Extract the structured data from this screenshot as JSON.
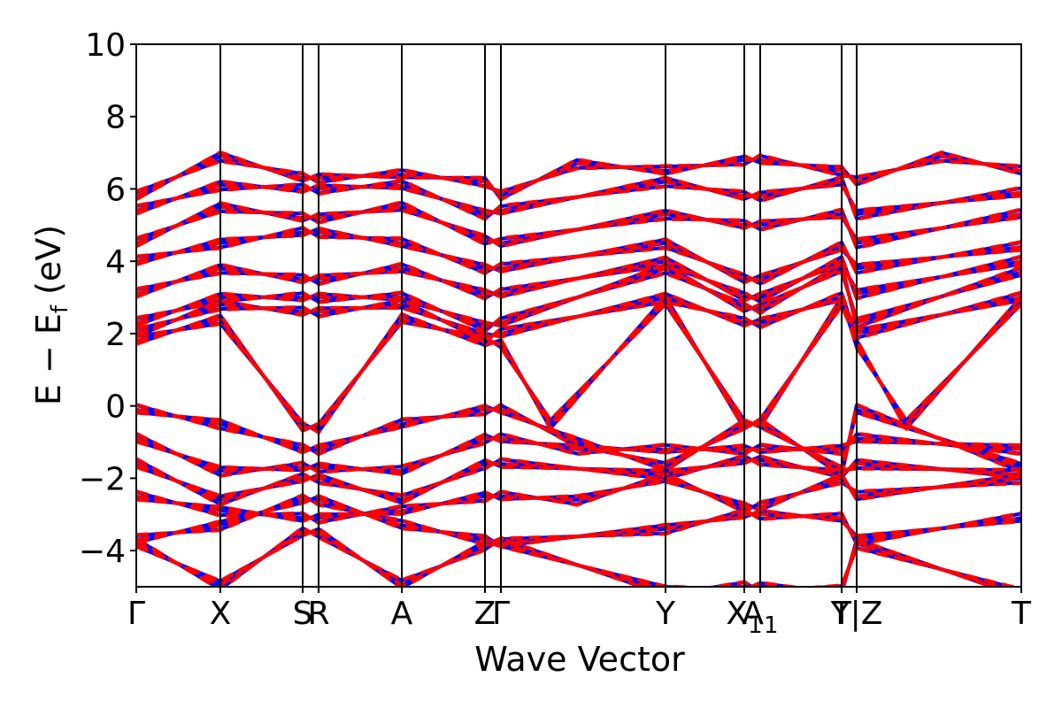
{
  "chart_data": {
    "type": "line",
    "xlabel": "Wave Vector",
    "ylabel": "E − E",
    "ylabel_sub": "f",
    "ylabel_unit": " (eV)",
    "ylim": [
      -5,
      10
    ],
    "yticks": [
      -4,
      -2,
      0,
      2,
      4,
      6,
      8,
      10
    ],
    "ytick_labels": [
      "−4",
      "−2",
      "0",
      "2",
      "4",
      "6",
      "8",
      "10"
    ],
    "xlim": [
      0,
      1
    ],
    "kpoints": [
      {
        "label": "Γ",
        "sub": "",
        "x": 0.0
      },
      {
        "label": "X",
        "sub": "",
        "x": 0.095
      },
      {
        "label": "S",
        "sub": "",
        "x": 0.188
      },
      {
        "label": "R",
        "sub": "",
        "x": 0.206
      },
      {
        "label": "A",
        "sub": "",
        "x": 0.3
      },
      {
        "label": "Z",
        "sub": "",
        "x": 0.394
      },
      {
        "label": "Γ",
        "sub": "",
        "x": 0.412
      },
      {
        "label": "Y",
        "sub": "",
        "x": 0.598
      },
      {
        "label": "X",
        "sub": "1",
        "x": 0.687
      },
      {
        "label": "A",
        "sub": "1",
        "x": 0.705
      },
      {
        "label": "T",
        "sub": "",
        "x": 0.797
      },
      {
        "label": "Y|Z",
        "sub": "",
        "x": 0.814
      },
      {
        "label": "T",
        "sub": "",
        "x": 1.0
      }
    ],
    "series": [
      {
        "color": "#0000ff",
        "style": "solid"
      },
      {
        "color": "#ff0000",
        "style": "dashed"
      }
    ],
    "bands": [
      {
        "x": [
          0,
          0.095,
          0.188,
          0.206,
          0.3,
          0.394,
          0.412,
          0.598,
          0.687,
          0.705,
          0.797,
          0.814,
          1.0
        ],
        "y": [
          -3.8,
          -4.95,
          -3.5,
          -3.5,
          -4.95,
          -3.85,
          -3.8,
          -5.1,
          -5.0,
          -5.0,
          -5.1,
          -3.8,
          -5.2
        ]
      },
      {
        "x": [
          0,
          0.095,
          0.188,
          0.206,
          0.3,
          0.394,
          0.412,
          0.598,
          0.687,
          0.705,
          0.797,
          0.814,
          1.0
        ],
        "y": [
          -3.7,
          -3.3,
          -2.6,
          -2.6,
          -3.3,
          -3.7,
          -3.8,
          -3.4,
          -3.0,
          -3.0,
          -3.1,
          -3.7,
          -3.1
        ]
      },
      {
        "x": [
          0,
          0.095,
          0.188,
          0.206,
          0.3,
          0.394,
          0.412,
          0.498,
          0.598,
          0.687,
          0.705,
          0.797,
          0.814,
          1.0
        ],
        "y": [
          -2.5,
          -2.9,
          -3.1,
          -3.1,
          -2.9,
          -2.5,
          -2.5,
          -2.6,
          -2.0,
          -2.8,
          -2.8,
          -2.0,
          -2.5,
          -2.0
        ]
      },
      {
        "x": [
          0,
          0.095,
          0.188,
          0.206,
          0.3,
          0.394,
          0.412,
          0.598,
          0.687,
          0.705,
          0.797,
          0.814,
          1.0
        ],
        "y": [
          -1.6,
          -2.6,
          -2.0,
          -2.0,
          -2.6,
          -1.6,
          -1.6,
          -1.9,
          -1.5,
          -1.5,
          -1.9,
          -1.6,
          -1.9
        ]
      },
      {
        "x": [
          0,
          0.095,
          0.188,
          0.206,
          0.3,
          0.394,
          0.412,
          0.498,
          0.598,
          0.687,
          0.705,
          0.797,
          0.814,
          1.0
        ],
        "y": [
          -0.9,
          -1.8,
          -1.7,
          -1.7,
          -1.8,
          -0.9,
          -0.9,
          -1.2,
          -1.2,
          -1.2,
          -1.2,
          -1.2,
          -0.9,
          -1.2
        ]
      },
      {
        "x": [
          0,
          0.095,
          0.188,
          0.206,
          0.3,
          0.394,
          0.412,
          0.498,
          0.598,
          0.687,
          0.705,
          0.797,
          0.814,
          1.0
        ],
        "y": [
          -0.1,
          -0.5,
          -1.2,
          -1.2,
          -0.5,
          -0.1,
          -0.1,
          -1.0,
          -1.7,
          -0.5,
          -0.5,
          -1.8,
          -0.1,
          -1.7
        ]
      },
      {
        "x": [
          0,
          0.095,
          0.188,
          0.206,
          0.3,
          0.394,
          0.412,
          0.468,
          0.598,
          0.687,
          0.705,
          0.797,
          0.814,
          0.87,
          1.0
        ],
        "y": [
          1.8,
          2.4,
          -0.6,
          -0.6,
          2.4,
          1.8,
          1.7,
          -0.5,
          2.9,
          -0.5,
          -0.5,
          2.9,
          1.7,
          -0.5,
          2.9
        ]
      },
      {
        "x": [
          0,
          0.095,
          0.188,
          0.206,
          0.3,
          0.394,
          0.412,
          0.598,
          0.687,
          0.705,
          0.797,
          0.814,
          1.0
        ],
        "y": [
          2.0,
          2.8,
          2.6,
          2.6,
          2.8,
          1.9,
          2.0,
          3.0,
          2.3,
          2.3,
          3.0,
          2.0,
          3.0
        ]
      },
      {
        "x": [
          0,
          0.095,
          0.188,
          0.206,
          0.3,
          0.394,
          0.412,
          0.598,
          0.687,
          0.705,
          0.797,
          0.814,
          1.0
        ],
        "y": [
          2.3,
          3.0,
          3.0,
          3.0,
          3.0,
          2.2,
          2.3,
          3.8,
          2.7,
          2.7,
          3.8,
          2.3,
          3.7
        ]
      },
      {
        "x": [
          0,
          0.095,
          0.188,
          0.206,
          0.3,
          0.394,
          0.412,
          0.598,
          0.687,
          0.705,
          0.797,
          0.814,
          1.0
        ],
        "y": [
          3.1,
          3.8,
          3.5,
          3.5,
          3.8,
          3.1,
          3.1,
          4.0,
          3.0,
          3.0,
          4.0,
          3.1,
          4.0
        ]
      },
      {
        "x": [
          0,
          0.095,
          0.188,
          0.206,
          0.3,
          0.394,
          0.412,
          0.598,
          0.687,
          0.705,
          0.797,
          0.814,
          1.0
        ],
        "y": [
          4.0,
          4.5,
          4.8,
          4.8,
          4.5,
          3.8,
          3.8,
          4.5,
          3.5,
          3.5,
          4.4,
          3.8,
          4.4
        ]
      },
      {
        "x": [
          0,
          0.095,
          0.188,
          0.206,
          0.3,
          0.394,
          0.412,
          0.598,
          0.687,
          0.705,
          0.797,
          0.814,
          1.0
        ],
        "y": [
          4.5,
          5.5,
          5.2,
          5.2,
          5.5,
          4.6,
          4.5,
          5.3,
          5.0,
          5.0,
          5.3,
          4.5,
          5.3
        ]
      },
      {
        "x": [
          0,
          0.095,
          0.188,
          0.206,
          0.3,
          0.394,
          0.412,
          0.598,
          0.687,
          0.705,
          0.797,
          0.814,
          1.0
        ],
        "y": [
          5.4,
          6.1,
          6.0,
          6.0,
          6.1,
          5.3,
          5.4,
          6.2,
          5.8,
          5.8,
          6.2,
          5.3,
          5.9
        ]
      },
      {
        "x": [
          0,
          0.095,
          0.188,
          0.206,
          0.3,
          0.394,
          0.412,
          0.498,
          0.598,
          0.687,
          0.705,
          0.797,
          0.814,
          0.91,
          1.0
        ],
        "y": [
          5.8,
          6.9,
          6.3,
          6.3,
          6.4,
          6.2,
          5.8,
          6.7,
          6.5,
          6.8,
          6.8,
          6.5,
          6.2,
          6.9,
          6.5
        ]
      }
    ]
  }
}
